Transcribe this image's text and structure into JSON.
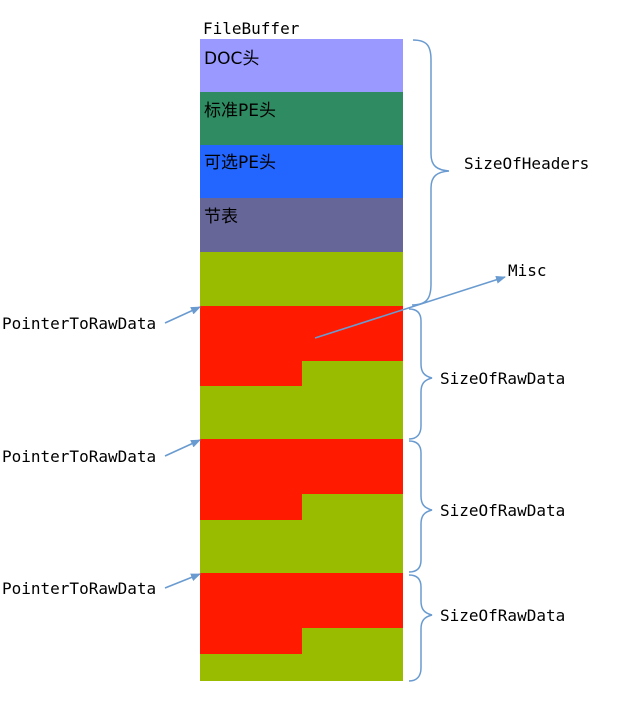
{
  "diagram": {
    "title": "FileBuffer",
    "header_blocks": [
      {
        "id": "doc",
        "label": "DOC头",
        "color": "#9999FF"
      },
      {
        "id": "std_pe",
        "label": "标准PE头",
        "color": "#2E8B62"
      },
      {
        "id": "opt_pe",
        "label": "可选PE头",
        "color": "#2266FF"
      },
      {
        "id": "section_table",
        "label": "节表",
        "color": "#666699"
      },
      {
        "id": "padding",
        "label": "",
        "color": "#99BB00"
      }
    ],
    "sections": [
      {
        "pointer_label": "PointerToRawData",
        "size_label": "SizeOfRawData",
        "data_color": "#FF1A00",
        "pad_color": "#99BB00"
      },
      {
        "pointer_label": "PointerToRawData",
        "size_label": "SizeOfRawData",
        "data_color": "#FF1A00",
        "pad_color": "#99BB00"
      },
      {
        "pointer_label": "PointerToRawData",
        "size_label": "SizeOfRawData",
        "data_color": "#FF1A00",
        "pad_color": "#99BB00"
      }
    ],
    "headers_brace_label": "SizeOfHeaders",
    "misc_label": "Misc",
    "arrow_color": "#6A9BD0",
    "brace_color": "#6A9BD0"
  }
}
